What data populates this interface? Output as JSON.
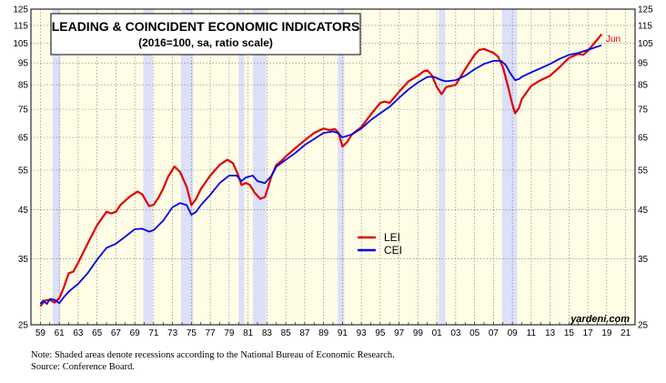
{
  "chart_data": {
    "type": "line",
    "title": "LEADING & COINCIDENT ECONOMIC INDICATORS",
    "subtitle": "(2016=100, sa, ratio scale)",
    "y_scale": "log",
    "ylim": [
      25,
      125
    ],
    "xlim": [
      1958,
      2022
    ],
    "y_ticks": [
      "25",
      "35",
      "45",
      "55",
      "65",
      "75",
      "85",
      "95",
      "105",
      "115",
      "125"
    ],
    "x_ticks": [
      "59",
      "61",
      "63",
      "65",
      "67",
      "69",
      "71",
      "73",
      "75",
      "77",
      "79",
      "81",
      "83",
      "85",
      "87",
      "89",
      "91",
      "93",
      "95",
      "97",
      "99",
      "01",
      "03",
      "05",
      "07",
      "09",
      "11",
      "13",
      "15",
      "17",
      "19",
      "21"
    ],
    "grid": true,
    "legend_position": "center",
    "recessions": [
      [
        1960.3,
        1961.1
      ],
      [
        1969.9,
        1970.9
      ],
      [
        1973.9,
        1975.2
      ],
      [
        1980.0,
        1980.6
      ],
      [
        1981.5,
        1982.9
      ],
      [
        1990.5,
        1991.2
      ],
      [
        2001.2,
        2001.9
      ],
      [
        2007.9,
        2009.5
      ]
    ],
    "series": [
      {
        "name": "LEI",
        "color": "#e00000",
        "x": [
          1959.0,
          1959.5,
          1960.0,
          1960.5,
          1961.0,
          1961.5,
          1962.0,
          1962.5,
          1963.0,
          1964.0,
          1965.0,
          1966.0,
          1966.5,
          1967.0,
          1967.5,
          1968.5,
          1969.3,
          1969.8,
          1970.5,
          1971.0,
          1971.5,
          1972.0,
          1972.5,
          1973.2,
          1973.8,
          1974.5,
          1975.0,
          1975.5,
          1976.0,
          1977.0,
          1978.0,
          1978.8,
          1979.4,
          1979.9,
          1980.3,
          1980.8,
          1981.2,
          1981.7,
          1982.3,
          1982.8,
          1983.5,
          1984.0,
          1984.5,
          1985.0,
          1986.0,
          1987.0,
          1988.0,
          1989.0,
          1989.6,
          1990.2,
          1990.6,
          1991.0,
          1991.5,
          1992.0,
          1993.0,
          1994.0,
          1995.0,
          1995.5,
          1996.0,
          1997.0,
          1998.0,
          1999.0,
          1999.6,
          2000.0,
          2000.5,
          2001.0,
          2001.5,
          2002.0,
          2003.0,
          2004.0,
          2005.0,
          2005.5,
          2006.0,
          2006.5,
          2007.0,
          2007.5,
          2008.0,
          2008.5,
          2009.0,
          2009.3,
          2009.7,
          2010.0,
          2011.0,
          2012.0,
          2013.0,
          2014.0,
          2015.0,
          2016.0,
          2016.5,
          2017.0,
          2017.5,
          2018.0,
          2018.45
        ],
        "values": [
          27.5,
          28.3,
          28.4,
          28.0,
          28.6,
          30.3,
          32.5,
          32.8,
          34.3,
          37.8,
          41.5,
          44.5,
          44.1,
          44.5,
          46.1,
          48.1,
          49.3,
          48.6,
          45.8,
          46.1,
          47.8,
          50.0,
          53.0,
          56.0,
          54.5,
          50.5,
          46.0,
          47.5,
          50.0,
          53.5,
          56.5,
          58.0,
          57.0,
          54.0,
          51.0,
          51.5,
          51.0,
          49.0,
          47.5,
          48.0,
          53.5,
          56.5,
          57.5,
          59.0,
          61.5,
          64.0,
          66.5,
          68.0,
          67.5,
          67.8,
          66.5,
          62.0,
          63.5,
          66.0,
          68.5,
          73.0,
          77.5,
          78.0,
          77.5,
          82.0,
          86.5,
          89.0,
          91.0,
          91.5,
          89.0,
          84.0,
          81.0,
          84.0,
          85.0,
          92.0,
          99.0,
          101.5,
          102.0,
          101.0,
          100.0,
          98.0,
          93.0,
          85.0,
          77.0,
          73.5,
          75.5,
          79.0,
          84.5,
          87.0,
          89.0,
          93.0,
          97.5,
          99.5,
          99.0,
          101.0,
          104.0,
          107.0,
          110.0
        ]
      },
      {
        "name": "CEI",
        "color": "#0000e6",
        "x": [
          1959.0,
          1959.3,
          1959.7,
          1960.0,
          1960.5,
          1961.0,
          1961.5,
          1962.0,
          1963.0,
          1964.0,
          1965.0,
          1966.0,
          1967.0,
          1968.0,
          1969.0,
          1969.8,
          1970.5,
          1971.0,
          1972.0,
          1973.0,
          1973.8,
          1974.5,
          1975.0,
          1975.5,
          1976.0,
          1977.0,
          1978.0,
          1979.0,
          1979.8,
          1980.3,
          1980.8,
          1981.5,
          1982.0,
          1982.8,
          1983.5,
          1984.0,
          1985.0,
          1986.0,
          1987.0,
          1988.0,
          1989.0,
          1990.0,
          1990.5,
          1991.0,
          1991.5,
          1992.0,
          1993.0,
          1994.0,
          1995.0,
          1996.0,
          1997.0,
          1998.0,
          1999.0,
          2000.0,
          2000.7,
          2001.5,
          2002.0,
          2003.0,
          2004.0,
          2005.0,
          2006.0,
          2007.0,
          2007.8,
          2008.3,
          2008.8,
          2009.3,
          2009.7,
          2010.0,
          2011.0,
          2012.0,
          2013.0,
          2014.0,
          2015.0,
          2016.0,
          2017.0,
          2018.45
        ],
        "values": [
          27.8,
          28.3,
          27.8,
          28.5,
          28.4,
          27.9,
          28.8,
          29.6,
          30.8,
          32.5,
          34.8,
          37.0,
          37.8,
          39.2,
          40.7,
          40.8,
          40.2,
          40.5,
          42.5,
          45.5,
          46.5,
          46.0,
          43.8,
          44.5,
          46.0,
          48.5,
          51.5,
          53.5,
          53.5,
          52.0,
          53.0,
          53.5,
          52.0,
          51.5,
          53.5,
          56.0,
          58.0,
          60.0,
          62.5,
          64.5,
          66.5,
          67.0,
          66.5,
          65.0,
          65.5,
          66.0,
          68.0,
          71.0,
          73.5,
          76.0,
          79.5,
          83.0,
          86.0,
          88.5,
          88.5,
          87.0,
          86.5,
          87.0,
          89.0,
          92.0,
          94.5,
          96.0,
          96.0,
          94.0,
          90.0,
          87.0,
          87.5,
          88.5,
          90.5,
          92.5,
          94.5,
          97.0,
          99.0,
          100.0,
          101.5,
          104.0
        ]
      }
    ],
    "annotations": [
      "Jun"
    ]
  },
  "watermark": "yardeni.com",
  "footnotes": [
    "Note: Shaded areas denote recessions according to the National Bureau of Economic Research.",
    "Source: Conference Board."
  ],
  "colors": {
    "plot_background": "#fffde6",
    "recession_shade": "#dce0f8",
    "grid": "#7a7a7a",
    "frame": "#000000"
  }
}
